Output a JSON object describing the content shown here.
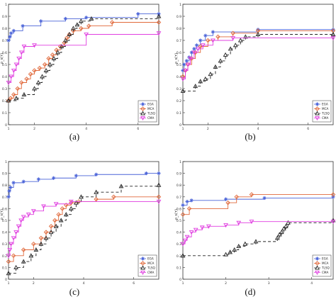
{
  "chart_data": [
    {
      "id": "a",
      "type": "line",
      "step": true,
      "caption": "(a)",
      "ylabel": "ρ_s(τ)",
      "xlim": [
        1,
        6.8
      ],
      "ylim": [
        0,
        1
      ],
      "xticks": [
        "1",
        "2",
        "4",
        "6"
      ],
      "yticks": [
        "0",
        "0.1",
        "0.2",
        "0.3",
        "0.4",
        "0.5",
        "0.6",
        "0.7",
        "0.8",
        "0.9",
        "1"
      ],
      "legend": "bottom-right",
      "series": [
        {
          "name": "EGA",
          "color": "#4a63d8",
          "dash": "",
          "marker": "star",
          "x": [
            1,
            1.05,
            1.1,
            1.2,
            1.55,
            2.25,
            3.2,
            4.0,
            6.0,
            6.8
          ],
          "y": [
            0.7,
            0.73,
            0.76,
            0.78,
            0.82,
            0.86,
            0.88,
            0.89,
            0.92,
            0.92
          ]
        },
        {
          "name": "MCA",
          "color": "#e0683a",
          "dash": "",
          "marker": "diamond",
          "x": [
            1,
            1.08,
            1.2,
            1.35,
            1.5,
            1.7,
            1.85,
            2.0,
            2.2,
            2.4,
            2.55,
            2.7,
            2.85,
            3.0,
            3.15,
            3.25,
            3.35,
            3.5,
            3.8,
            4.1,
            5.0,
            6.8
          ],
          "y": [
            0.2,
            0.22,
            0.25,
            0.3,
            0.35,
            0.38,
            0.42,
            0.45,
            0.47,
            0.5,
            0.55,
            0.58,
            0.62,
            0.65,
            0.68,
            0.72,
            0.75,
            0.78,
            0.8,
            0.82,
            0.85,
            0.85
          ]
        },
        {
          "name": "TLSQ",
          "color": "#222222",
          "dash": "4,3",
          "marker": "triangle",
          "x": [
            1,
            1.3,
            1.6,
            2.0,
            2.15,
            2.3,
            2.45,
            2.6,
            2.75,
            2.9,
            3.05,
            3.2,
            3.35,
            3.5,
            3.65,
            3.8,
            4.2,
            6.8
          ],
          "y": [
            0.2,
            0.22,
            0.25,
            0.3,
            0.35,
            0.4,
            0.45,
            0.5,
            0.55,
            0.6,
            0.65,
            0.7,
            0.75,
            0.8,
            0.83,
            0.86,
            0.88,
            0.9
          ]
        },
        {
          "name": "CMA",
          "color": "#e03fe0",
          "dash": "",
          "marker": "tri-down",
          "x": [
            1,
            1.1,
            1.2,
            1.3,
            1.4,
            1.5,
            1.6,
            2.0,
            4.0,
            6.8
          ],
          "y": [
            0.35,
            0.4,
            0.45,
            0.5,
            0.55,
            0.6,
            0.65,
            0.66,
            0.75,
            0.76
          ]
        }
      ]
    },
    {
      "id": "b",
      "type": "line",
      "step": true,
      "caption": "(b)",
      "ylabel": "ρ_s(τ)",
      "xlim": [
        1,
        7
      ],
      "ylim": [
        0,
        1
      ],
      "xticks": [
        "1",
        "2",
        "4",
        "6"
      ],
      "yticks": [
        "0",
        "0.1",
        "0.2",
        "0.3",
        "0.4",
        "0.5",
        "0.6",
        "0.7",
        "0.8",
        "0.9",
        "1"
      ],
      "legend": "bottom-right",
      "series": [
        {
          "name": "EGA",
          "color": "#4a63d8",
          "dash": "",
          "marker": "star",
          "x": [
            1,
            1.05,
            1.15,
            1.25,
            1.35,
            1.45,
            1.55,
            1.7,
            1.9,
            2.2,
            4.0,
            7.0
          ],
          "y": [
            0.45,
            0.5,
            0.53,
            0.56,
            0.6,
            0.63,
            0.66,
            0.7,
            0.74,
            0.77,
            0.79,
            0.79
          ]
        },
        {
          "name": "MCA",
          "color": "#e0683a",
          "dash": "",
          "marker": "diamond",
          "x": [
            1,
            1.1,
            1.2,
            1.35,
            1.5,
            1.7,
            2.0,
            2.4,
            3.0,
            4.0,
            7.0
          ],
          "y": [
            0.4,
            0.45,
            0.5,
            0.55,
            0.6,
            0.65,
            0.7,
            0.73,
            0.76,
            0.78,
            0.78
          ]
        },
        {
          "name": "TLSQ",
          "color": "#222222",
          "dash": "4,3",
          "marker": "triangle",
          "x": [
            1,
            1.5,
            1.7,
            1.9,
            2.1,
            2.3,
            2.5,
            2.7,
            2.9,
            3.1,
            3.3,
            3.5,
            4.0,
            7.0
          ],
          "y": [
            0.28,
            0.32,
            0.36,
            0.38,
            0.42,
            0.48,
            0.53,
            0.58,
            0.63,
            0.66,
            0.7,
            0.73,
            0.75,
            0.75
          ]
        },
        {
          "name": "CMA",
          "color": "#e03fe0",
          "dash": "",
          "marker": "tri-down",
          "x": [
            1,
            1.1,
            1.2,
            1.3,
            1.45,
            1.6,
            1.8,
            2.2,
            3.0,
            7.0
          ],
          "y": [
            0.38,
            0.45,
            0.5,
            0.55,
            0.6,
            0.63,
            0.66,
            0.7,
            0.72,
            0.72
          ]
        }
      ]
    },
    {
      "id": "c",
      "type": "line",
      "step": true,
      "caption": "(c)",
      "ylabel": "ρ_s(τ)",
      "xlim": [
        1,
        7
      ],
      "ylim": [
        0,
        1
      ],
      "xticks": [
        "1",
        "2",
        "4",
        "6"
      ],
      "yticks": [
        "0",
        "0.1",
        "0.2",
        "0.3",
        "0.4",
        "0.5",
        "0.6",
        "0.7",
        "0.8",
        "0.9",
        "1"
      ],
      "legend": "bottom-right",
      "series": [
        {
          "name": "EGA",
          "color": "#4a63d8",
          "dash": "",
          "marker": "star",
          "x": [
            1,
            1.03,
            1.08,
            1.2,
            1.6,
            2.2,
            2.8,
            3.7,
            4.5,
            6.5,
            7.0
          ],
          "y": [
            0.7,
            0.75,
            0.78,
            0.82,
            0.83,
            0.85,
            0.86,
            0.88,
            0.89,
            0.9,
            0.9
          ]
        },
        {
          "name": "MCA",
          "color": "#e0683a",
          "dash": "",
          "marker": "diamond",
          "x": [
            1,
            1.2,
            1.6,
            2.0,
            2.3,
            2.5,
            2.7,
            2.85,
            3.0,
            3.15,
            3.3,
            3.5,
            3.8,
            4.5,
            5.2,
            7.0
          ],
          "y": [
            0.15,
            0.2,
            0.25,
            0.3,
            0.35,
            0.4,
            0.45,
            0.5,
            0.55,
            0.6,
            0.63,
            0.65,
            0.66,
            0.68,
            0.7,
            0.7
          ]
        },
        {
          "name": "TLSQ",
          "color": "#222222",
          "dash": "4,3",
          "marker": "triangle",
          "x": [
            1,
            1.3,
            1.6,
            1.9,
            2.1,
            2.3,
            2.5,
            2.7,
            2.9,
            3.1,
            3.3,
            3.5,
            3.7,
            3.9,
            4.5,
            5.5,
            7.0
          ],
          "y": [
            0.05,
            0.1,
            0.15,
            0.2,
            0.25,
            0.3,
            0.35,
            0.4,
            0.45,
            0.5,
            0.55,
            0.6,
            0.65,
            0.7,
            0.74,
            0.79,
            0.8
          ]
        },
        {
          "name": "CMA",
          "color": "#e03fe0",
          "dash": "",
          "marker": "tri-down",
          "x": [
            1,
            1.05,
            1.1,
            1.2,
            1.3,
            1.4,
            1.5,
            1.6,
            1.8,
            2.0,
            2.4,
            2.9,
            3.5,
            7.0
          ],
          "y": [
            0.2,
            0.25,
            0.3,
            0.35,
            0.4,
            0.45,
            0.5,
            0.53,
            0.55,
            0.58,
            0.62,
            0.64,
            0.66,
            0.66
          ]
        }
      ]
    },
    {
      "id": "d",
      "type": "line",
      "step": true,
      "caption": "(d)",
      "ylabel": "ρ_s(τ)",
      "xlim": [
        1,
        4.5
      ],
      "ylim": [
        0,
        1
      ],
      "xticks": [
        "1",
        "2",
        "3",
        "4"
      ],
      "yticks": [
        "0",
        "0.1",
        "0.2",
        "0.3",
        "0.4",
        "0.5",
        "0.6",
        "0.7",
        "0.8",
        "0.9",
        "1"
      ],
      "legend": "bottom-right",
      "series": [
        {
          "name": "EGA",
          "color": "#4a63d8",
          "dash": "",
          "marker": "star",
          "x": [
            1,
            1.1,
            1.2,
            2.0,
            2.9,
            4.5
          ],
          "y": [
            0.63,
            0.66,
            0.67,
            0.68,
            0.69,
            0.7
          ]
        },
        {
          "name": "MCA",
          "color": "#e0683a",
          "dash": "",
          "marker": "diamond",
          "x": [
            1,
            1.15,
            2.05,
            2.25,
            2.6,
            4.5
          ],
          "y": [
            0.55,
            0.6,
            0.65,
            0.7,
            0.72,
            0.72
          ]
        },
        {
          "name": "TLSQ",
          "color": "#222222",
          "dash": "4,3",
          "marker": "triangle",
          "x": [
            1,
            2.0,
            2.1,
            2.2,
            2.3,
            2.45,
            2.7,
            3.2,
            3.25,
            3.3,
            3.35,
            3.4,
            3.45,
            4.5
          ],
          "y": [
            0.2,
            0.21,
            0.23,
            0.25,
            0.28,
            0.3,
            0.32,
            0.35,
            0.38,
            0.4,
            0.43,
            0.45,
            0.48,
            0.5
          ]
        },
        {
          "name": "CMA",
          "color": "#e03fe0",
          "dash": "",
          "marker": "tri-down",
          "x": [
            1,
            1.05,
            1.1,
            1.2,
            1.3,
            1.45,
            1.6,
            2.0,
            2.3,
            2.6,
            4.5
          ],
          "y": [
            0.3,
            0.33,
            0.36,
            0.4,
            0.42,
            0.44,
            0.45,
            0.46,
            0.48,
            0.49,
            0.49
          ]
        }
      ]
    }
  ]
}
